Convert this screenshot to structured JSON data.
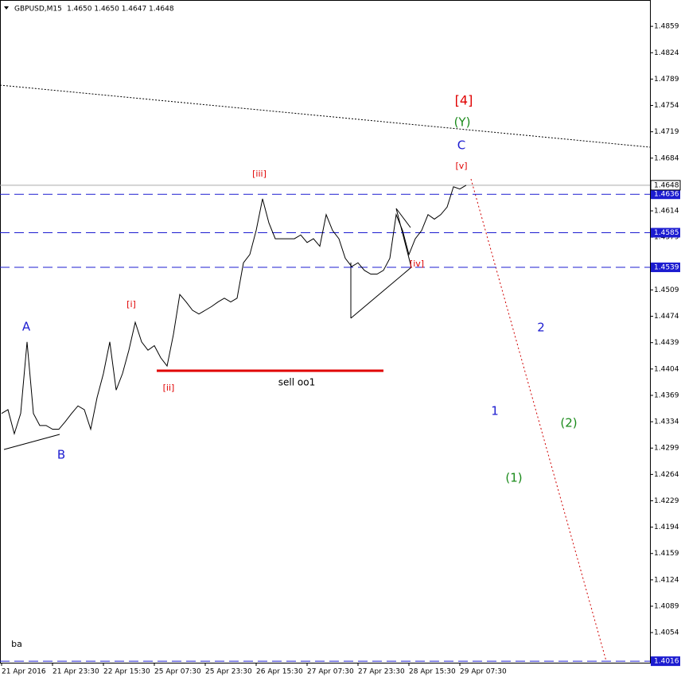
{
  "chart_data": {
    "type": "line",
    "title": "GBPUSD,M15",
    "ohlc": "1.4650 1.4650 1.4647 1.4648",
    "categories": [
      "21 Apr 2016",
      null,
      null,
      null,
      null,
      null,
      null,
      null,
      "21 Apr 23:30",
      null,
      null,
      null,
      null,
      null,
      null,
      null,
      "22 Apr 15:30",
      null,
      null,
      null,
      null,
      null,
      null,
      null,
      "25 Apr 07:30",
      null,
      null,
      null,
      null,
      null,
      null,
      null,
      "25 Apr 23:30",
      null,
      null,
      null,
      null,
      null,
      null,
      null,
      "26 Apr 15:30",
      null,
      null,
      null,
      null,
      null,
      null,
      null,
      "27 Apr 07:30",
      null,
      null,
      null,
      null,
      null,
      null,
      null,
      "27 Apr 23:30",
      null,
      null,
      null,
      null,
      null,
      null,
      null,
      "28 Apr 15:30",
      null,
      null,
      null,
      null,
      null,
      null,
      null,
      "29 Apr 07:30",
      null
    ],
    "values": [
      1.4345,
      1.435,
      1.4318,
      1.4345,
      1.444,
      1.4345,
      1.4329,
      1.4329,
      1.4324,
      1.4324,
      1.4334,
      1.4345,
      1.4355,
      1.435,
      1.4324,
      1.4366,
      1.4398,
      1.444,
      1.4376,
      1.4398,
      1.4429,
      1.4466,
      1.444,
      1.4429,
      1.4435,
      1.4419,
      1.4408,
      1.445,
      1.4503,
      1.4493,
      1.4482,
      1.4477,
      1.4482,
      1.4487,
      1.4493,
      1.4498,
      1.4493,
      1.4498,
      1.4545,
      1.4556,
      1.4588,
      1.463,
      1.4598,
      1.4577,
      1.4577,
      1.4577,
      1.4577,
      1.4582,
      1.4572,
      1.4577,
      1.4567,
      1.4609,
      1.4588,
      1.4577,
      1.4551,
      1.454,
      1.4545,
      1.4535,
      1.453,
      1.453,
      1.4535,
      1.4551,
      1.4609,
      1.4588,
      1.4556,
      1.4577,
      1.4588,
      1.4609,
      1.4603,
      1.4609,
      1.4619,
      1.4646,
      1.4643,
      1.4648
    ],
    "color": "#000000",
    "ylim": [
      1.4014,
      1.4894
    ],
    "yticks": [
      1.4859,
      1.4824,
      1.4789,
      1.4754,
      1.4719,
      1.4684,
      1.4614,
      1.4579,
      1.4509,
      1.4474,
      1.4439,
      1.4404,
      1.4369,
      1.4334,
      1.4299,
      1.4264,
      1.4229,
      1.4194,
      1.4159,
      1.4124,
      1.4089,
      1.4054
    ],
    "current_price": 1.4648,
    "levels": [
      1.4636,
      1.4585,
      1.4539,
      1.4016
    ],
    "level_color": "#1c1cd0",
    "annotations": [
      {
        "text": "[4]",
        "color": "#e00000"
      },
      {
        "text": "(Y)",
        "color": "#1a8a1a"
      },
      {
        "text": "C",
        "color": "#1c1cd0"
      },
      {
        "text": "[v]",
        "color": "#e00000"
      },
      {
        "text": "[iii]",
        "color": "#e00000"
      },
      {
        "text": "[i]",
        "color": "#e00000"
      },
      {
        "text": "[ii]",
        "color": "#e00000"
      },
      {
        "text": "[iv]",
        "color": "#e00000"
      },
      {
        "text": "A",
        "color": "#1c1cd0"
      },
      {
        "text": "B",
        "color": "#1c1cd0"
      },
      {
        "text": "1",
        "color": "#1c1cd0"
      },
      {
        "text": "2",
        "color": "#1c1cd0"
      },
      {
        "text": "(1)",
        "color": "#1a8a1a"
      },
      {
        "text": "(2)",
        "color": "#1a8a1a"
      },
      {
        "text": "sell oo1",
        "color": "#000000"
      },
      {
        "text": "ba",
        "color": "#000000"
      }
    ]
  }
}
